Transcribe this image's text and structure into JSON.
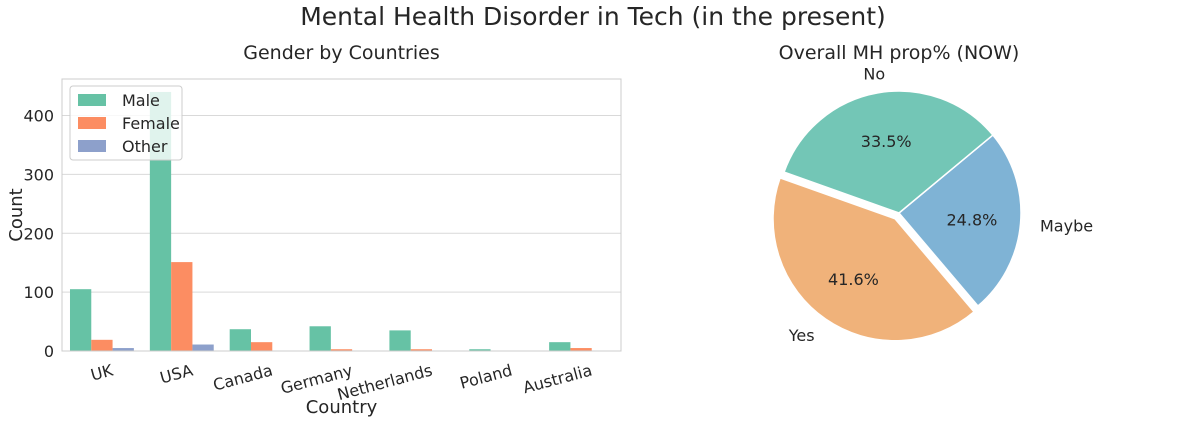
{
  "suptitle": "Mental Health Disorder in Tech (in the present)",
  "chart_data": [
    {
      "type": "bar",
      "title": "Gender by Countries",
      "xlabel": "Country",
      "ylabel": "Count",
      "categories": [
        "UK",
        "USA",
        "Canada",
        "Germany",
        "Netherlands",
        "Poland",
        "Australia"
      ],
      "series": [
        {
          "name": "Male",
          "color": "#66c2a5",
          "values": [
            105,
            440,
            37,
            42,
            35,
            3,
            15
          ]
        },
        {
          "name": "Female",
          "color": "#fc8d62",
          "values": [
            19,
            151,
            15,
            3,
            3,
            0,
            5
          ]
        },
        {
          "name": "Other",
          "color": "#8da0cb",
          "values": [
            5,
            11,
            0,
            0,
            0,
            0,
            0
          ]
        }
      ],
      "ylim": [
        0,
        462
      ],
      "yticks": [
        0,
        100,
        200,
        300,
        400
      ],
      "grid": true,
      "legend_position": "top-left"
    },
    {
      "type": "pie",
      "title": "Overall MH prop% (NOW)",
      "slices": [
        {
          "label": "Maybe",
          "value": 24.8,
          "pct_label": "24.8%",
          "color": "#7fb3d5"
        },
        {
          "label": "Yes",
          "value": 41.6,
          "pct_label": "41.6%",
          "color": "#f0b27a"
        },
        {
          "label": "No",
          "value": 33.5,
          "pct_label": "33.5%",
          "color": "#73c6b6"
        }
      ],
      "exploded": "Yes"
    }
  ]
}
